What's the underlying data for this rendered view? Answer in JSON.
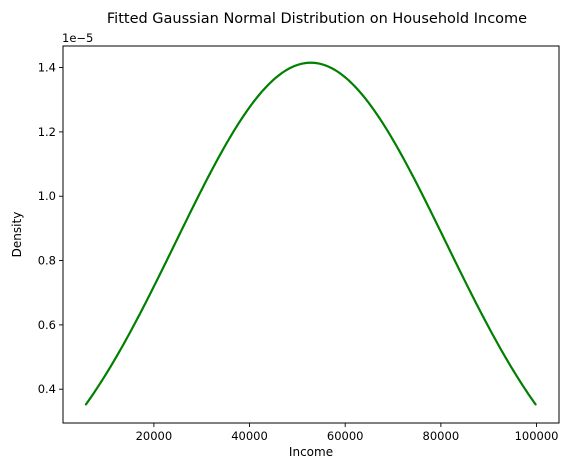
{
  "chart_data": {
    "type": "line",
    "title": "Fitted Gaussian Normal Distribution on Household Income",
    "xlabel": "Income",
    "ylabel": "Density",
    "y_offset_label": "1e−5",
    "y_scale_factor": 1e-05,
    "xlim": [
      1000,
      104700
    ],
    "ylim": [
      0.295,
      1.467
    ],
    "xticks": [
      20000,
      40000,
      60000,
      80000,
      100000
    ],
    "xtick_labels": [
      "20000",
      "40000",
      "60000",
      "80000",
      "100000"
    ],
    "yticks": [
      0.4,
      0.6,
      0.8,
      1.0,
      1.2,
      1.4
    ],
    "ytick_labels": [
      "0.4",
      "0.6",
      "0.8",
      "1.0",
      "1.2",
      "1.4"
    ],
    "grid": false,
    "legend": "none",
    "series": [
      {
        "color": "#008000",
        "x": [
          5800,
          10500,
          15200,
          19900,
          24600,
          29300,
          34000,
          38700,
          43400,
          48100,
          52800,
          57500,
          62200,
          66900,
          71600,
          76300,
          81000,
          85700,
          90400,
          95100,
          99800
        ],
        "y": [
          0.354,
          0.448,
          0.557,
          0.679,
          0.81,
          0.943,
          1.071,
          1.185,
          1.277,
          1.339,
          1.415,
          1.339,
          1.277,
          1.185,
          1.071,
          0.943,
          0.81,
          0.679,
          0.557,
          0.448,
          0.354
        ],
        "mean": 52800,
        "std": 28200,
        "peak": 1.415
      }
    ]
  }
}
